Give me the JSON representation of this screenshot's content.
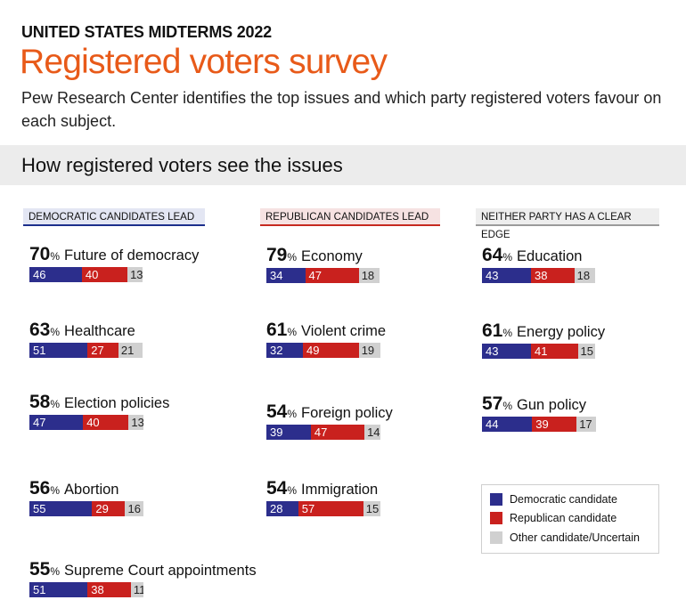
{
  "header": {
    "kicker": "UNITED STATES MIDTERMS 2022",
    "title": "Registered voters survey",
    "description": "Pew Research Center identifies the top issues and which party registered voters favour on each subject.",
    "section_title": "How registered voters see the issues"
  },
  "colors": {
    "democratic": "#2c2e8c",
    "republican": "#c9211e",
    "other": "#d0d0d0",
    "accent": "#e85a19"
  },
  "chart_data": {
    "type": "bar",
    "title": "How registered voters see the issues",
    "stacked": true,
    "orientation": "horizontal",
    "series_names": [
      "Democratic candidate",
      "Republican candidate",
      "Other candidate/Uncertain"
    ],
    "groups": [
      {
        "key": "dem",
        "label": "DEMOCRATIC CANDIDATES  LEAD",
        "items": [
          {
            "issue": "Future of democracy",
            "importance": 70,
            "dem": 46,
            "rep": 40,
            "other": 13
          },
          {
            "issue": "Healthcare",
            "importance": 63,
            "dem": 51,
            "rep": 27,
            "other": 21
          },
          {
            "issue": "Election policies",
            "importance": 58,
            "dem": 47,
            "rep": 40,
            "other": 13
          },
          {
            "issue": "Abortion",
            "importance": 56,
            "dem": 55,
            "rep": 29,
            "other": 16
          },
          {
            "issue": "Supreme Court appointments",
            "importance": 55,
            "dem": 51,
            "rep": 38,
            "other": 11
          }
        ]
      },
      {
        "key": "rep",
        "label": "REPUBLICAN CANDIDATES  LEAD",
        "items": [
          {
            "issue": "Economy",
            "importance": 79,
            "dem": 34,
            "rep": 47,
            "other": 18
          },
          {
            "issue": "Violent crime",
            "importance": 61,
            "dem": 32,
            "rep": 49,
            "other": 19
          },
          {
            "issue": "Foreign policy",
            "importance": 54,
            "dem": 39,
            "rep": 47,
            "other": 14
          },
          {
            "issue": "Immigration",
            "importance": 54,
            "dem": 28,
            "rep": 57,
            "other": 15
          }
        ]
      },
      {
        "key": "nei",
        "label": "NEITHER PARTY HAS A CLEAR EDGE",
        "items": [
          {
            "issue": "Education",
            "importance": 64,
            "dem": 43,
            "rep": 38,
            "other": 18
          },
          {
            "issue": "Energy policy",
            "importance": 61,
            "dem": 43,
            "rep": 41,
            "other": 15
          },
          {
            "issue": "Gun policy",
            "importance": 57,
            "dem": 44,
            "rep": 39,
            "other": 17
          }
        ]
      }
    ],
    "legend": [
      {
        "label": "Democratic candidate",
        "color": "#2c2e8c"
      },
      {
        "label": "Republican candidate",
        "color": "#c9211e"
      },
      {
        "label": "Other candidate/Uncertain",
        "color": "#d0d0d0"
      }
    ]
  }
}
